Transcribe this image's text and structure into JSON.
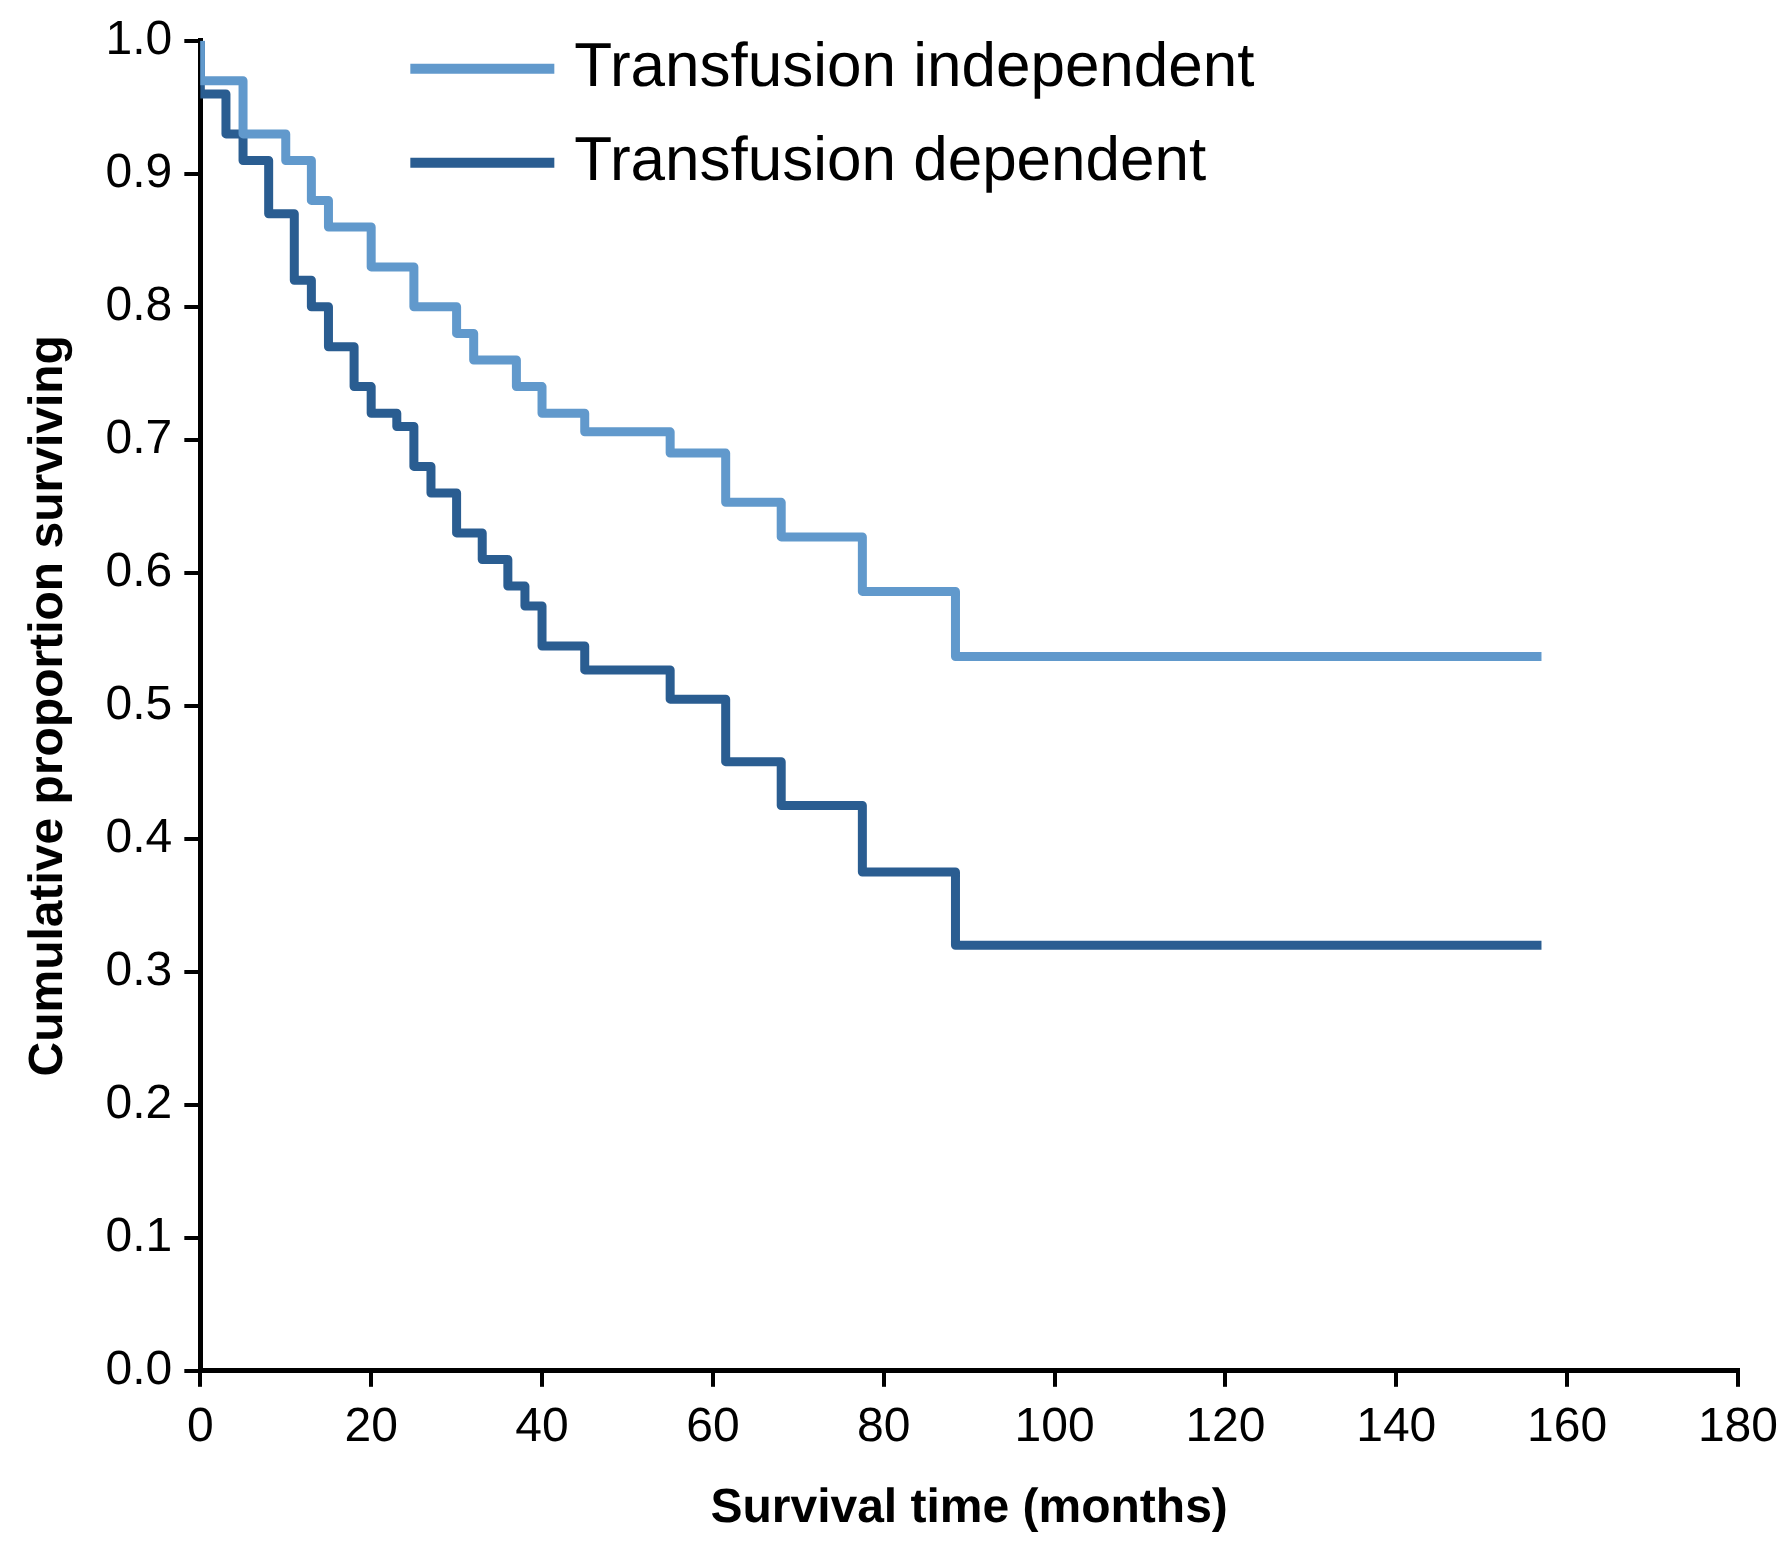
{
  "chart_data": {
    "type": "step",
    "xlabel": "Survival time (months)",
    "ylabel": "Cumulative proportion surviving",
    "xlim": [
      0,
      180
    ],
    "xticks": [
      0,
      20,
      40,
      60,
      80,
      100,
      120,
      140,
      160,
      180
    ],
    "ylim": [
      0,
      1
    ],
    "yticks": [
      {
        "value": 0,
        "label": "0.0"
      },
      0.1,
      0.2,
      0.3,
      0.4,
      0.5,
      0.6,
      0.7,
      0.8,
      0.9,
      {
        "value": 1,
        "label": "1.0"
      }
    ],
    "grid": false,
    "legend": "top",
    "marker": "none",
    "line_style": "solid",
    "series": [
      {
        "name": "Transfusion independent",
        "color": "#6199cc",
        "x": [
          0,
          5,
          10,
          13,
          15,
          20,
          25,
          30,
          32,
          37,
          40,
          45,
          55,
          61.5,
          68,
          77.5,
          88.4,
          91,
          157
        ],
        "values": [
          1,
          0.97,
          0.93,
          0.91,
          0.88,
          0.86,
          0.83,
          0.8,
          0.78,
          0.76,
          0.74,
          0.72,
          0.706,
          0.69,
          0.653,
          0.627,
          0.586,
          0.537,
          0.537
        ]
      },
      {
        "name": "Transfusion dependent",
        "color": "#2a5d91",
        "x": [
          0,
          3,
          5,
          8,
          11,
          13,
          15,
          18,
          20,
          23,
          25,
          27,
          30,
          33,
          36,
          38,
          40,
          45,
          55,
          61.5,
          68,
          77.5,
          88.4,
          91,
          157
        ],
        "values": [
          1,
          0.96,
          0.93,
          0.91,
          0.87,
          0.82,
          0.8,
          0.77,
          0.74,
          0.72,
          0.71,
          0.68,
          0.66,
          0.63,
          0.61,
          0.59,
          0.575,
          0.545,
          0.527,
          0.505,
          0.458,
          0.425,
          0.375,
          0.32,
          0.32
        ]
      }
    ]
  }
}
